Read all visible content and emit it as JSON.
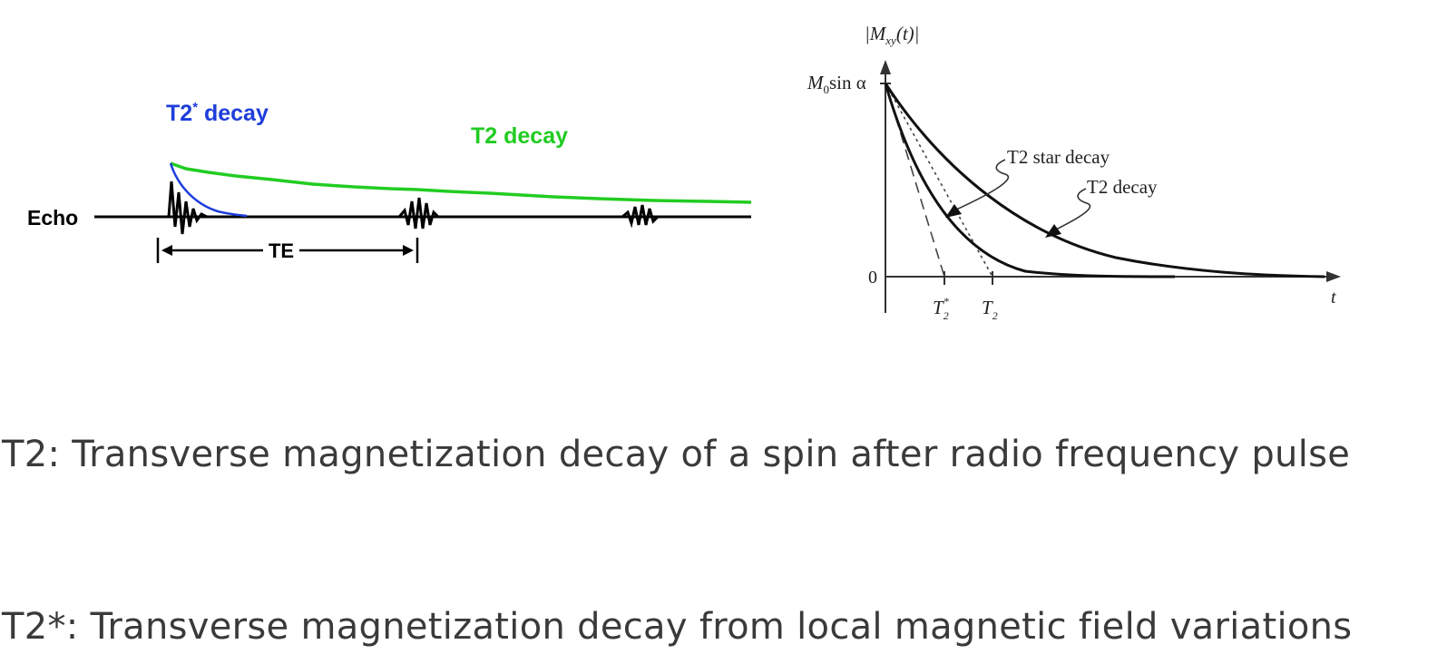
{
  "echo_diagram": {
    "t2star_label_prefix": "T2",
    "t2star_label_sup": "*",
    "t2star_label_suffix": " decay",
    "t2_label": "T2 decay",
    "echo_label": "Echo",
    "te_label": "TE",
    "colors": {
      "t2star": "#1e3ddb",
      "t2": "#22cc22",
      "signal": "#000000"
    }
  },
  "decay_plot": {
    "y_axis_label": "|M",
    "y_axis_label_sub": "xy",
    "y_axis_label_tail": "(t)|",
    "y_top_tick_M": "M",
    "y_top_tick_sub": "0",
    "y_top_tick_rest": "sin α",
    "y_zero_tick": "0",
    "x_axis_label": "t",
    "x_tick_t2star_main": "T",
    "x_tick_t2star_sub": "2",
    "x_tick_t2star_sup": "*",
    "x_tick_t2_main": "T",
    "x_tick_t2_sub": "2",
    "t2star_curve_label": "T2 star decay",
    "t2_curve_label": "T2 decay"
  },
  "definitions": {
    "t2": "T2: Transverse magnetization decay of a spin after radio frequency pulse",
    "t2star": "T2*: Transverse magnetization decay from local magnetic field variations"
  }
}
